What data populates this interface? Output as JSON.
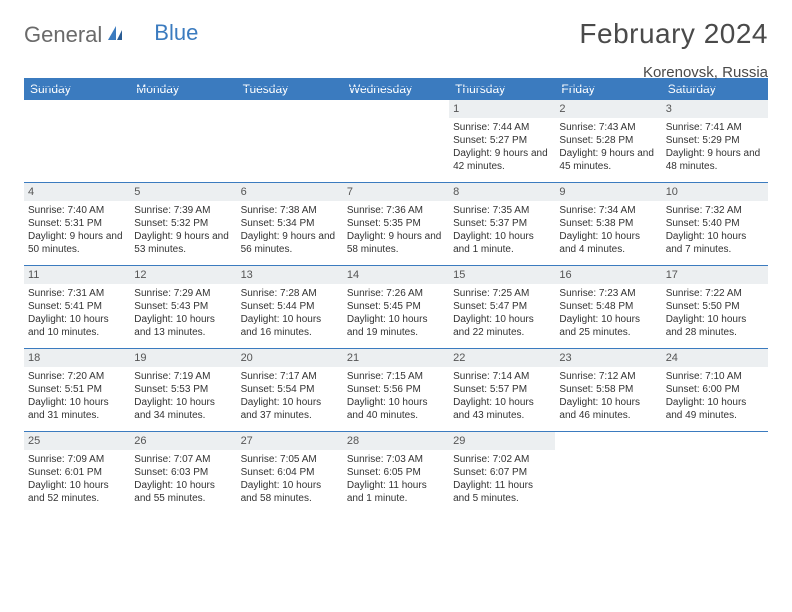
{
  "logo": {
    "general": "General",
    "blue": "Blue"
  },
  "title": "February 2024",
  "location": "Korenovsk, Russia",
  "colors": {
    "header_bar": "#3b7bbf",
    "daynum_bg": "#eceff1",
    "border": "#3b7bbf",
    "text": "#333333",
    "title_text": "#4a4a4a"
  },
  "day_names": [
    "Sunday",
    "Monday",
    "Tuesday",
    "Wednesday",
    "Thursday",
    "Friday",
    "Saturday"
  ],
  "weeks": [
    [
      {
        "n": "",
        "sr": "",
        "ss": "",
        "dl": ""
      },
      {
        "n": "",
        "sr": "",
        "ss": "",
        "dl": ""
      },
      {
        "n": "",
        "sr": "",
        "ss": "",
        "dl": ""
      },
      {
        "n": "",
        "sr": "",
        "ss": "",
        "dl": ""
      },
      {
        "n": "1",
        "sr": "Sunrise: 7:44 AM",
        "ss": "Sunset: 5:27 PM",
        "dl": "Daylight: 9 hours and 42 minutes."
      },
      {
        "n": "2",
        "sr": "Sunrise: 7:43 AM",
        "ss": "Sunset: 5:28 PM",
        "dl": "Daylight: 9 hours and 45 minutes."
      },
      {
        "n": "3",
        "sr": "Sunrise: 7:41 AM",
        "ss": "Sunset: 5:29 PM",
        "dl": "Daylight: 9 hours and 48 minutes."
      }
    ],
    [
      {
        "n": "4",
        "sr": "Sunrise: 7:40 AM",
        "ss": "Sunset: 5:31 PM",
        "dl": "Daylight: 9 hours and 50 minutes."
      },
      {
        "n": "5",
        "sr": "Sunrise: 7:39 AM",
        "ss": "Sunset: 5:32 PM",
        "dl": "Daylight: 9 hours and 53 minutes."
      },
      {
        "n": "6",
        "sr": "Sunrise: 7:38 AM",
        "ss": "Sunset: 5:34 PM",
        "dl": "Daylight: 9 hours and 56 minutes."
      },
      {
        "n": "7",
        "sr": "Sunrise: 7:36 AM",
        "ss": "Sunset: 5:35 PM",
        "dl": "Daylight: 9 hours and 58 minutes."
      },
      {
        "n": "8",
        "sr": "Sunrise: 7:35 AM",
        "ss": "Sunset: 5:37 PM",
        "dl": "Daylight: 10 hours and 1 minute."
      },
      {
        "n": "9",
        "sr": "Sunrise: 7:34 AM",
        "ss": "Sunset: 5:38 PM",
        "dl": "Daylight: 10 hours and 4 minutes."
      },
      {
        "n": "10",
        "sr": "Sunrise: 7:32 AM",
        "ss": "Sunset: 5:40 PM",
        "dl": "Daylight: 10 hours and 7 minutes."
      }
    ],
    [
      {
        "n": "11",
        "sr": "Sunrise: 7:31 AM",
        "ss": "Sunset: 5:41 PM",
        "dl": "Daylight: 10 hours and 10 minutes."
      },
      {
        "n": "12",
        "sr": "Sunrise: 7:29 AM",
        "ss": "Sunset: 5:43 PM",
        "dl": "Daylight: 10 hours and 13 minutes."
      },
      {
        "n": "13",
        "sr": "Sunrise: 7:28 AM",
        "ss": "Sunset: 5:44 PM",
        "dl": "Daylight: 10 hours and 16 minutes."
      },
      {
        "n": "14",
        "sr": "Sunrise: 7:26 AM",
        "ss": "Sunset: 5:45 PM",
        "dl": "Daylight: 10 hours and 19 minutes."
      },
      {
        "n": "15",
        "sr": "Sunrise: 7:25 AM",
        "ss": "Sunset: 5:47 PM",
        "dl": "Daylight: 10 hours and 22 minutes."
      },
      {
        "n": "16",
        "sr": "Sunrise: 7:23 AM",
        "ss": "Sunset: 5:48 PM",
        "dl": "Daylight: 10 hours and 25 minutes."
      },
      {
        "n": "17",
        "sr": "Sunrise: 7:22 AM",
        "ss": "Sunset: 5:50 PM",
        "dl": "Daylight: 10 hours and 28 minutes."
      }
    ],
    [
      {
        "n": "18",
        "sr": "Sunrise: 7:20 AM",
        "ss": "Sunset: 5:51 PM",
        "dl": "Daylight: 10 hours and 31 minutes."
      },
      {
        "n": "19",
        "sr": "Sunrise: 7:19 AM",
        "ss": "Sunset: 5:53 PM",
        "dl": "Daylight: 10 hours and 34 minutes."
      },
      {
        "n": "20",
        "sr": "Sunrise: 7:17 AM",
        "ss": "Sunset: 5:54 PM",
        "dl": "Daylight: 10 hours and 37 minutes."
      },
      {
        "n": "21",
        "sr": "Sunrise: 7:15 AM",
        "ss": "Sunset: 5:56 PM",
        "dl": "Daylight: 10 hours and 40 minutes."
      },
      {
        "n": "22",
        "sr": "Sunrise: 7:14 AM",
        "ss": "Sunset: 5:57 PM",
        "dl": "Daylight: 10 hours and 43 minutes."
      },
      {
        "n": "23",
        "sr": "Sunrise: 7:12 AM",
        "ss": "Sunset: 5:58 PM",
        "dl": "Daylight: 10 hours and 46 minutes."
      },
      {
        "n": "24",
        "sr": "Sunrise: 7:10 AM",
        "ss": "Sunset: 6:00 PM",
        "dl": "Daylight: 10 hours and 49 minutes."
      }
    ],
    [
      {
        "n": "25",
        "sr": "Sunrise: 7:09 AM",
        "ss": "Sunset: 6:01 PM",
        "dl": "Daylight: 10 hours and 52 minutes."
      },
      {
        "n": "26",
        "sr": "Sunrise: 7:07 AM",
        "ss": "Sunset: 6:03 PM",
        "dl": "Daylight: 10 hours and 55 minutes."
      },
      {
        "n": "27",
        "sr": "Sunrise: 7:05 AM",
        "ss": "Sunset: 6:04 PM",
        "dl": "Daylight: 10 hours and 58 minutes."
      },
      {
        "n": "28",
        "sr": "Sunrise: 7:03 AM",
        "ss": "Sunset: 6:05 PM",
        "dl": "Daylight: 11 hours and 1 minute."
      },
      {
        "n": "29",
        "sr": "Sunrise: 7:02 AM",
        "ss": "Sunset: 6:07 PM",
        "dl": "Daylight: 11 hours and 5 minutes."
      },
      {
        "n": "",
        "sr": "",
        "ss": "",
        "dl": ""
      },
      {
        "n": "",
        "sr": "",
        "ss": "",
        "dl": ""
      }
    ]
  ]
}
